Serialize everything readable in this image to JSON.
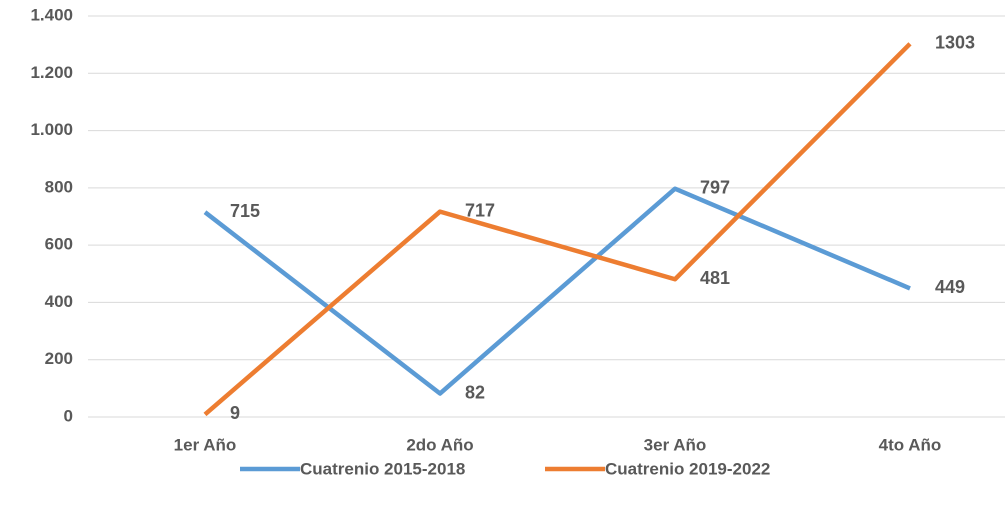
{
  "chart_data": {
    "type": "line",
    "categories": [
      "1er Año",
      "2do Año",
      "3er Año",
      "4to Año"
    ],
    "series": [
      {
        "name": "Cuatrenio 2015-2018",
        "color": "#5b9bd5",
        "label_color": "#ff0000",
        "values": [
          715,
          82,
          797,
          449
        ]
      },
      {
        "name": "Cuatrenio 2019-2022",
        "color": "#ed7d31",
        "label_color": "#262626",
        "values": [
          9,
          717,
          481,
          1303
        ]
      }
    ],
    "ylim": [
      0,
      1400
    ],
    "yticks": [
      0,
      200,
      400,
      600,
      800,
      {
        "value": 1000,
        "label": "1.000"
      },
      {
        "value": 1200,
        "label": "1.200"
      },
      {
        "value": 1400,
        "label": "1.400"
      }
    ],
    "grid": true,
    "legend": "bottom"
  }
}
